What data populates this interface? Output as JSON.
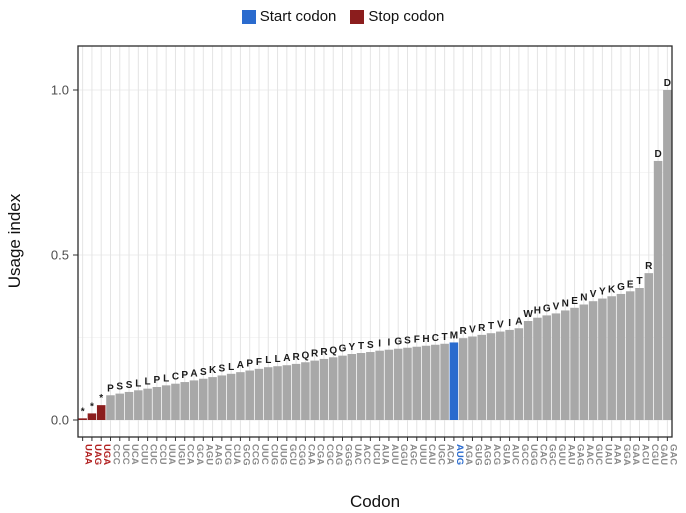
{
  "legend": {
    "start_label": "Start codon",
    "stop_label": "Stop codon"
  },
  "axes": {
    "y_title": "Usage index",
    "x_title": "Codon",
    "y_ticks": [
      {
        "label": "0.0",
        "value": 0.0
      },
      {
        "label": "0.5",
        "value": 0.5
      },
      {
        "label": "1.0",
        "value": 1.0
      }
    ]
  },
  "colors": {
    "start": "#2a6bce",
    "stop": "#8b1d1d",
    "bar": "#a8a8a8",
    "grid_v": "#e4e4e4",
    "grid_h_major": "#ededed",
    "grid_h_minor": "#f5f5f5",
    "panel_border": "#2b2b2b",
    "tick_label_default": "#8c8c8c",
    "tick_label_stop": "#b22222",
    "tick_label_start": "#2a6bce",
    "annotation": "#1a1a1a"
  },
  "chart_data": {
    "type": "bar",
    "title": "",
    "xlabel": "Codon",
    "ylabel": "Usage index",
    "ylim": [
      0,
      1.08
    ],
    "grid": true,
    "legend_position": "top",
    "bars": [
      {
        "codon": "UAA",
        "aa": "*",
        "value": 0.005,
        "role": "stop"
      },
      {
        "codon": "UAG",
        "aa": "*",
        "value": 0.02,
        "role": "stop"
      },
      {
        "codon": "UGA",
        "aa": "*",
        "value": 0.045,
        "role": "stop"
      },
      {
        "codon": "CCC",
        "aa": "P",
        "value": 0.075,
        "role": "normal"
      },
      {
        "codon": "UCC",
        "aa": "S",
        "value": 0.08,
        "role": "normal"
      },
      {
        "codon": "UCA",
        "aa": "S",
        "value": 0.085,
        "role": "normal"
      },
      {
        "codon": "CUU",
        "aa": "L",
        "value": 0.09,
        "role": "normal"
      },
      {
        "codon": "CUC",
        "aa": "L",
        "value": 0.095,
        "role": "normal"
      },
      {
        "codon": "CCU",
        "aa": "P",
        "value": 0.1,
        "role": "normal"
      },
      {
        "codon": "UUA",
        "aa": "L",
        "value": 0.105,
        "role": "normal"
      },
      {
        "codon": "UGU",
        "aa": "C",
        "value": 0.11,
        "role": "normal"
      },
      {
        "codon": "CCA",
        "aa": "P",
        "value": 0.115,
        "role": "normal"
      },
      {
        "codon": "GCA",
        "aa": "A",
        "value": 0.12,
        "role": "normal"
      },
      {
        "codon": "AGU",
        "aa": "S",
        "value": 0.125,
        "role": "normal"
      },
      {
        "codon": "AAG",
        "aa": "K",
        "value": 0.13,
        "role": "normal"
      },
      {
        "codon": "UCG",
        "aa": "S",
        "value": 0.135,
        "role": "normal"
      },
      {
        "codon": "CUA",
        "aa": "L",
        "value": 0.14,
        "role": "normal"
      },
      {
        "codon": "GCG",
        "aa": "A",
        "value": 0.145,
        "role": "normal"
      },
      {
        "codon": "CCG",
        "aa": "P",
        "value": 0.15,
        "role": "normal"
      },
      {
        "codon": "UUC",
        "aa": "F",
        "value": 0.155,
        "role": "normal"
      },
      {
        "codon": "CUG",
        "aa": "L",
        "value": 0.16,
        "role": "normal"
      },
      {
        "codon": "UUG",
        "aa": "L",
        "value": 0.163,
        "role": "normal"
      },
      {
        "codon": "GCU",
        "aa": "A",
        "value": 0.166,
        "role": "normal"
      },
      {
        "codon": "CGG",
        "aa": "R",
        "value": 0.17,
        "role": "normal"
      },
      {
        "codon": "CAA",
        "aa": "Q",
        "value": 0.175,
        "role": "normal"
      },
      {
        "codon": "CGA",
        "aa": "R",
        "value": 0.18,
        "role": "normal"
      },
      {
        "codon": "CGC",
        "aa": "R",
        "value": 0.185,
        "role": "normal"
      },
      {
        "codon": "CAG",
        "aa": "Q",
        "value": 0.19,
        "role": "normal"
      },
      {
        "codon": "GGG",
        "aa": "G",
        "value": 0.195,
        "role": "normal"
      },
      {
        "codon": "UAC",
        "aa": "Y",
        "value": 0.2,
        "role": "normal"
      },
      {
        "codon": "ACC",
        "aa": "T",
        "value": 0.203,
        "role": "normal"
      },
      {
        "codon": "UCU",
        "aa": "S",
        "value": 0.206,
        "role": "normal"
      },
      {
        "codon": "AUA",
        "aa": "I",
        "value": 0.21,
        "role": "normal"
      },
      {
        "codon": "AUU",
        "aa": "I",
        "value": 0.213,
        "role": "normal"
      },
      {
        "codon": "GGU",
        "aa": "G",
        "value": 0.216,
        "role": "normal"
      },
      {
        "codon": "AGC",
        "aa": "S",
        "value": 0.219,
        "role": "normal"
      },
      {
        "codon": "UUU",
        "aa": "F",
        "value": 0.222,
        "role": "normal"
      },
      {
        "codon": "CAU",
        "aa": "H",
        "value": 0.225,
        "role": "normal"
      },
      {
        "codon": "UGC",
        "aa": "C",
        "value": 0.228,
        "role": "normal"
      },
      {
        "codon": "ACA",
        "aa": "T",
        "value": 0.231,
        "role": "normal"
      },
      {
        "codon": "AUG",
        "aa": "M",
        "value": 0.235,
        "role": "start"
      },
      {
        "codon": "AGA",
        "aa": "R",
        "value": 0.248,
        "role": "normal"
      },
      {
        "codon": "GUG",
        "aa": "V",
        "value": 0.253,
        "role": "normal"
      },
      {
        "codon": "AGG",
        "aa": "R",
        "value": 0.258,
        "role": "normal"
      },
      {
        "codon": "ACG",
        "aa": "T",
        "value": 0.263,
        "role": "normal"
      },
      {
        "codon": "GUA",
        "aa": "V",
        "value": 0.268,
        "role": "normal"
      },
      {
        "codon": "AUC",
        "aa": "I",
        "value": 0.273,
        "role": "normal"
      },
      {
        "codon": "GCC",
        "aa": "A",
        "value": 0.278,
        "role": "normal"
      },
      {
        "codon": "UGG",
        "aa": "W",
        "value": 0.3,
        "role": "normal"
      },
      {
        "codon": "CAC",
        "aa": "H",
        "value": 0.31,
        "role": "normal"
      },
      {
        "codon": "GGC",
        "aa": "G",
        "value": 0.317,
        "role": "normal"
      },
      {
        "codon": "GUU",
        "aa": "V",
        "value": 0.323,
        "role": "normal"
      },
      {
        "codon": "AAU",
        "aa": "N",
        "value": 0.332,
        "role": "normal"
      },
      {
        "codon": "GAG",
        "aa": "E",
        "value": 0.34,
        "role": "normal"
      },
      {
        "codon": "AAC",
        "aa": "N",
        "value": 0.35,
        "role": "normal"
      },
      {
        "codon": "GUC",
        "aa": "V",
        "value": 0.36,
        "role": "normal"
      },
      {
        "codon": "UAU",
        "aa": "Y",
        "value": 0.368,
        "role": "normal"
      },
      {
        "codon": "AAA",
        "aa": "K",
        "value": 0.375,
        "role": "normal"
      },
      {
        "codon": "GGA",
        "aa": "G",
        "value": 0.382,
        "role": "normal"
      },
      {
        "codon": "GAA",
        "aa": "E",
        "value": 0.39,
        "role": "normal"
      },
      {
        "codon": "ACU",
        "aa": "T",
        "value": 0.4,
        "role": "normal"
      },
      {
        "codon": "CGU",
        "aa": "R",
        "value": 0.445,
        "role": "normal"
      },
      {
        "codon": "GAU",
        "aa": "D",
        "value": 0.785,
        "role": "normal"
      },
      {
        "codon": "GAC",
        "aa": "D",
        "value": 1.0,
        "role": "normal"
      }
    ]
  }
}
